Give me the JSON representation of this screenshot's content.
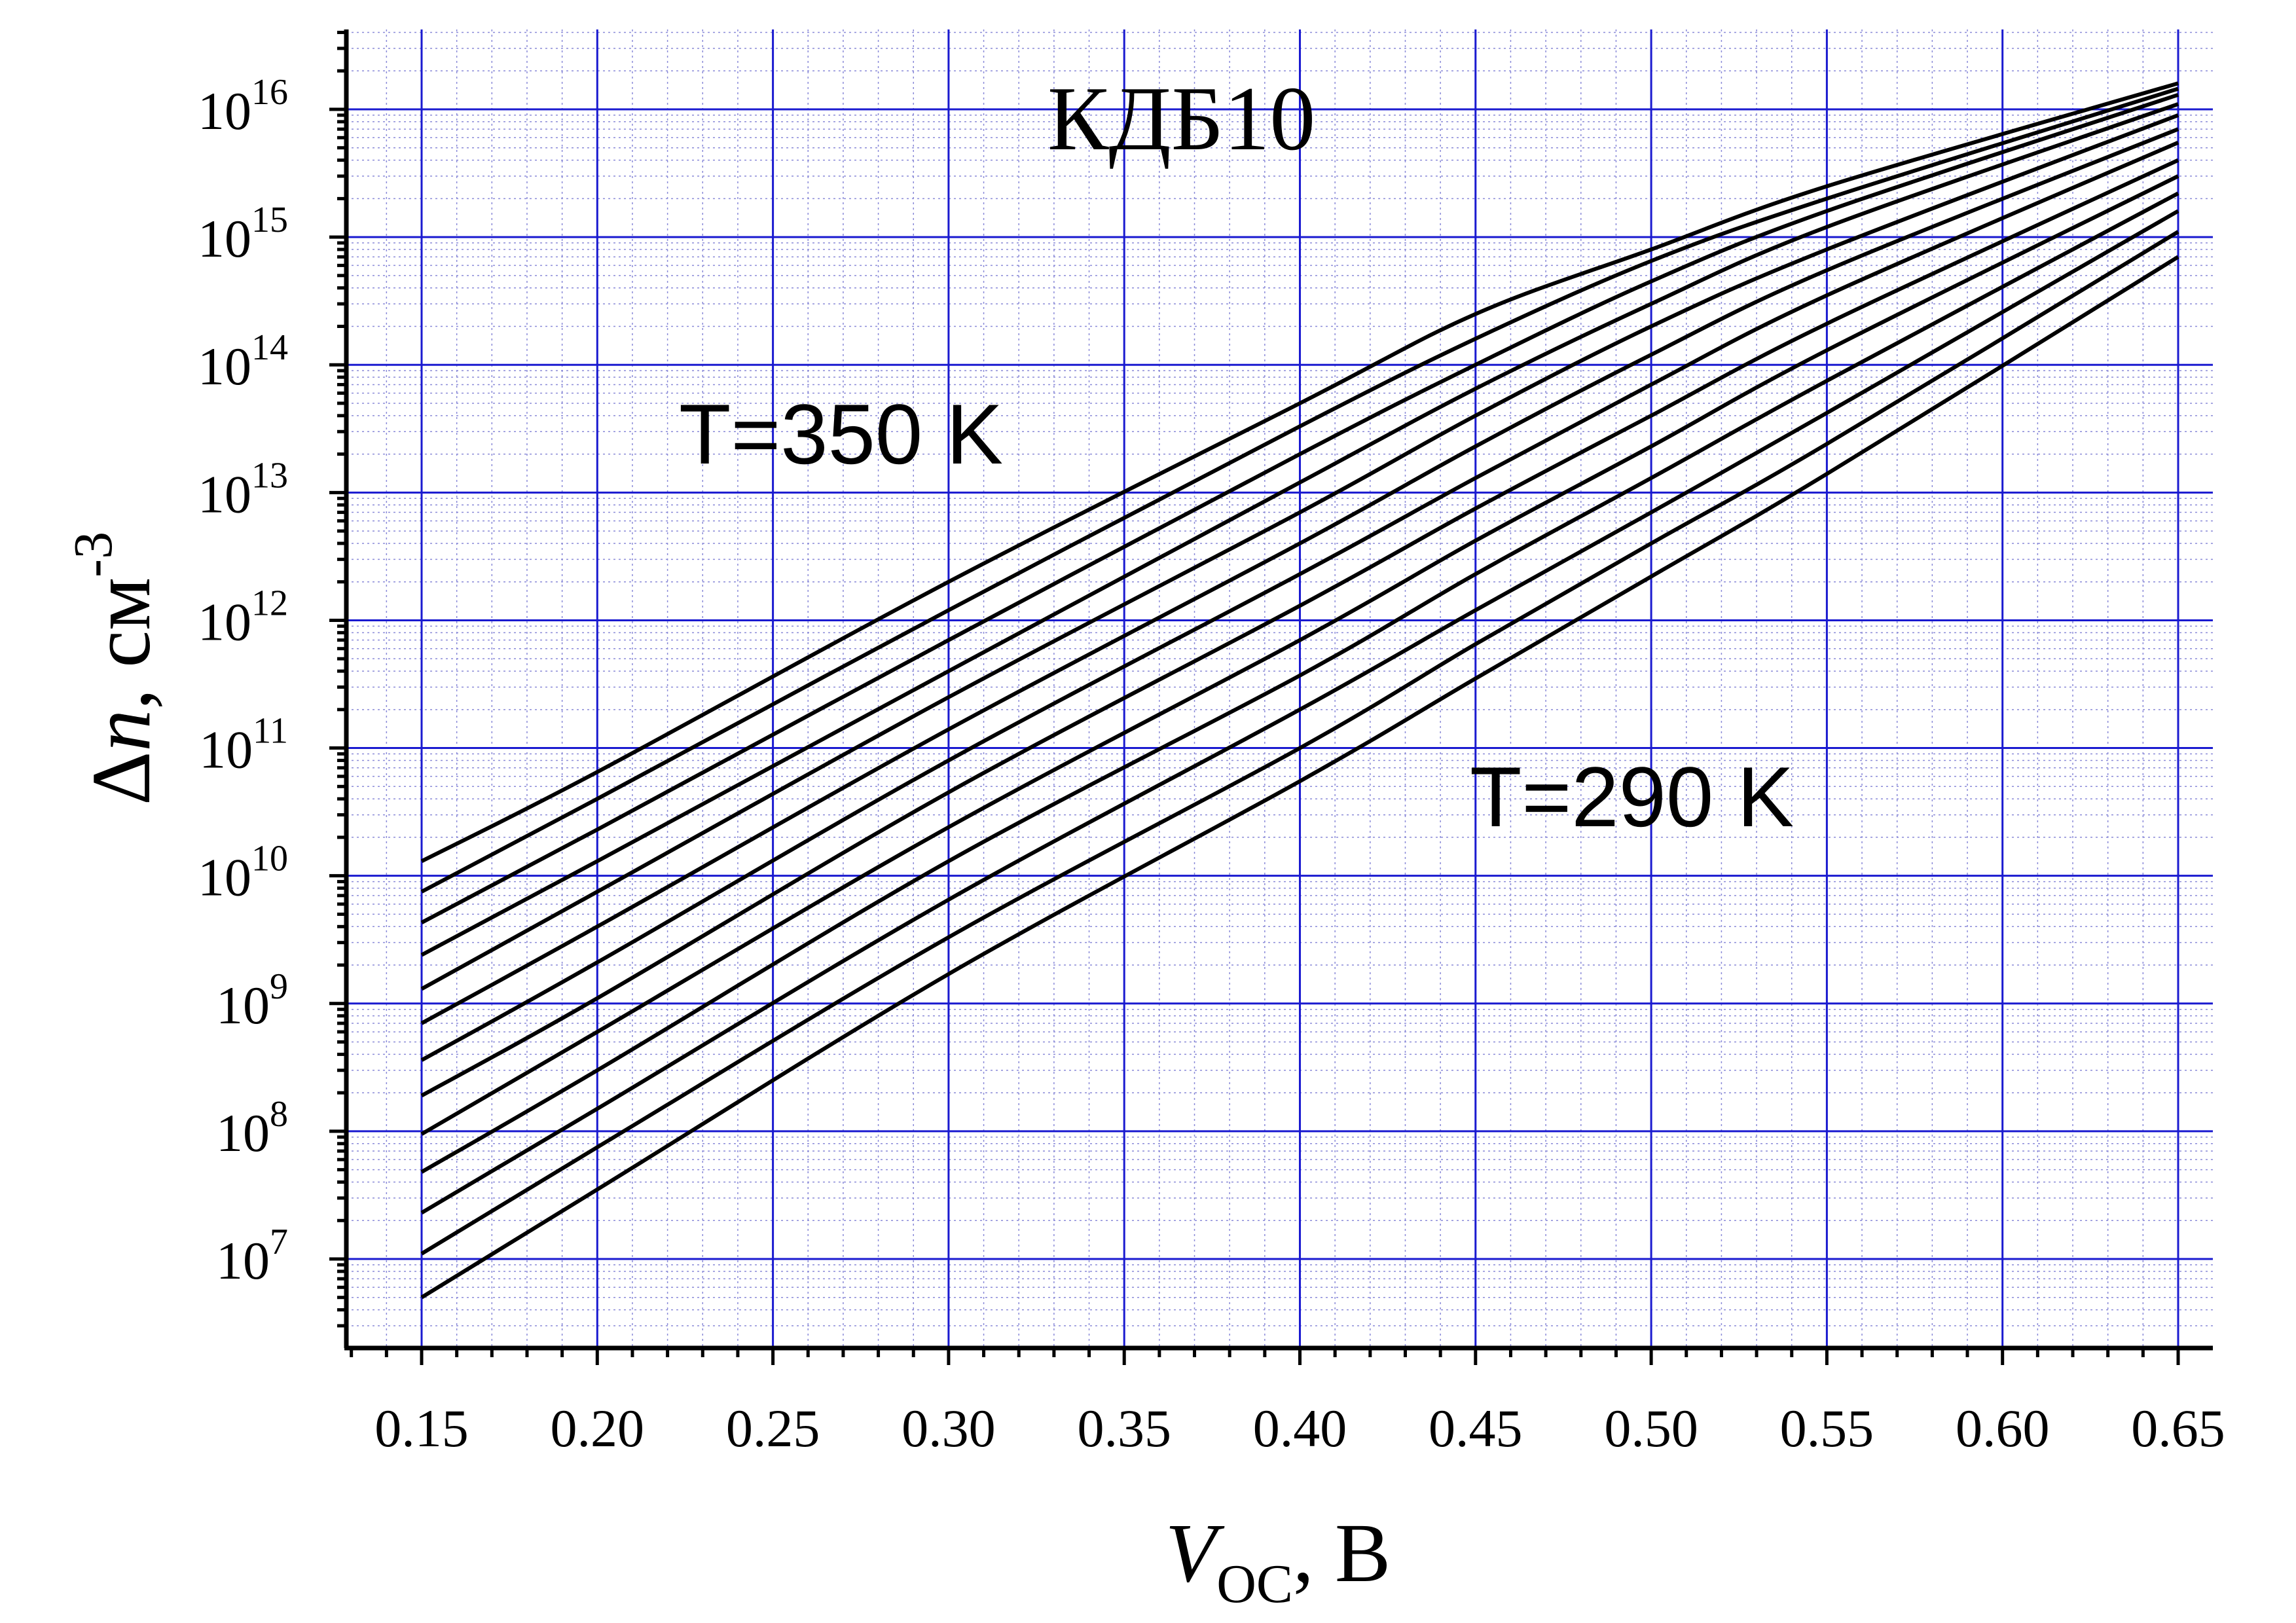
{
  "chart_data": {
    "type": "line",
    "title": "КДБ10",
    "xlabel": {
      "main": "V",
      "sub": "OC",
      "suffix": ", В"
    },
    "ylabel": {
      "main": "Δ",
      "italic": "n",
      "suffix": ", см",
      "sup": "-3"
    },
    "x_ticks": [
      "0.15",
      "0.20",
      "0.25",
      "0.30",
      "0.35",
      "0.40",
      "0.45",
      "0.50",
      "0.55",
      "0.60",
      "0.65"
    ],
    "y_ticks": [
      {
        "base": "10",
        "exp": "7"
      },
      {
        "base": "10",
        "exp": "8"
      },
      {
        "base": "10",
        "exp": "9"
      },
      {
        "base": "10",
        "exp": "10"
      },
      {
        "base": "10",
        "exp": "11"
      },
      {
        "base": "10",
        "exp": "12"
      },
      {
        "base": "10",
        "exp": "13"
      },
      {
        "base": "10",
        "exp": "14"
      },
      {
        "base": "10",
        "exp": "15"
      },
      {
        "base": "10",
        "exp": "16"
      }
    ],
    "xlim": [
      0.13,
      0.66
    ],
    "ylim": [
      1000000.0,
      1e+16
    ],
    "y_scale": "log",
    "grid": true,
    "annotations": [
      "T=350 K",
      "T=290 K"
    ],
    "series": [
      {
        "x": [
          0.15,
          0.2,
          0.3,
          0.4,
          0.45,
          0.5,
          0.55,
          0.65
        ],
        "y": [
          13000000000.0,
          65000000000.0,
          2000000000000.0,
          50000000000000.0,
          250000000000000.0,
          800000000000000.0,
          2500000000000000.0,
          1.6e+16
        ]
      },
      {
        "x": [
          0.15,
          0.2,
          0.3,
          0.4,
          0.45,
          0.5,
          0.55,
          0.65
        ],
        "y": [
          7500000000.0,
          40000000000.0,
          1200000000000.0,
          33000000000000.0,
          160000000000000.0,
          650000000000000.0,
          2000000000000000.0,
          1.45e+16
        ]
      },
      {
        "x": [
          0.15,
          0.2,
          0.3,
          0.4,
          0.45,
          0.5,
          0.55,
          0.65
        ],
        "y": [
          4300000000.0,
          23000000000.0,
          700000000000.0,
          20000000000000.0,
          100000000000000.0,
          450000000000000.0,
          1600000000000000.0,
          1.3e+16
        ]
      },
      {
        "x": [
          0.15,
          0.2,
          0.3,
          0.4,
          0.45,
          0.5,
          0.55,
          0.65
        ],
        "y": [
          2400000000.0,
          13000000000.0,
          400000000000.0,
          12000000000000.0,
          65000000000000.0,
          300000000000000.0,
          1200000000000000.0,
          1.1e+16
        ]
      },
      {
        "x": [
          0.15,
          0.2,
          0.3,
          0.4,
          0.45,
          0.5,
          0.55,
          0.65
        ],
        "y": [
          1300000000.0,
          7500000000.0,
          250000000000.0,
          7000000000000.0,
          40000000000000.0,
          200000000000000.0,
          800000000000000.0,
          9000000000000000.0
        ]
      },
      {
        "x": [
          0.15,
          0.2,
          0.3,
          0.4,
          0.45,
          0.5,
          0.55,
          0.65
        ],
        "y": [
          700000000.0,
          4000000000.0,
          140000000000.0,
          4000000000000.0,
          23000000000000.0,
          120000000000000.0,
          550000000000000.0,
          7000000000000000.0
        ]
      },
      {
        "x": [
          0.15,
          0.2,
          0.3,
          0.4,
          0.45,
          0.5,
          0.55,
          0.65
        ],
        "y": [
          360000000.0,
          2100000000.0,
          80000000000.0,
          2300000000000.0,
          13000000000000.0,
          70000000000000.0,
          350000000000000.0,
          5500000000000000.0
        ]
      },
      {
        "x": [
          0.15,
          0.2,
          0.3,
          0.4,
          0.45,
          0.5,
          0.55,
          0.65
        ],
        "y": [
          190000000.0,
          1100000000.0,
          45000000000.0,
          1300000000000.0,
          7500000000000.0,
          40000000000000.0,
          210000000000000.0,
          4000000000000000.0
        ]
      },
      {
        "x": [
          0.15,
          0.2,
          0.3,
          0.4,
          0.45,
          0.5,
          0.55,
          0.65
        ],
        "y": [
          95000000.0,
          600000000.0,
          24000000000.0,
          700000000000.0,
          4200000000000.0,
          23000000000000.0,
          130000000000000.0,
          3000000000000000.0
        ]
      },
      {
        "x": [
          0.15,
          0.2,
          0.3,
          0.4,
          0.45,
          0.5,
          0.55,
          0.65
        ],
        "y": [
          48000000.0,
          300000000.0,
          13000000000.0,
          370000000000.0,
          2300000000000.0,
          13000000000000.0,
          75000000000000.0,
          2200000000000000.0
        ]
      },
      {
        "x": [
          0.15,
          0.2,
          0.3,
          0.4,
          0.45,
          0.5,
          0.55,
          0.65
        ],
        "y": [
          23000000.0,
          150000000.0,
          6500000000.0,
          200000000000.0,
          1200000000000.0,
          7000000000000.0,
          42000000000000.0,
          1600000000000000.0
        ]
      },
      {
        "x": [
          0.15,
          0.2,
          0.3,
          0.4,
          0.45,
          0.5,
          0.55,
          0.65
        ],
        "y": [
          11000000.0,
          75000000.0,
          3300000000.0,
          100000000000.0,
          650000000000.0,
          4000000000000.0,
          24000000000000.0,
          1100000000000000.0
        ]
      },
      {
        "x": [
          0.15,
          0.2,
          0.3,
          0.4,
          0.45,
          0.5,
          0.55,
          0.65
        ],
        "y": [
          5000000.0,
          35000000.0,
          1700000000.0,
          55000000000.0,
          350000000000.0,
          2200000000000.0,
          14000000000000.0,
          700000000000000.0
        ]
      }
    ]
  }
}
